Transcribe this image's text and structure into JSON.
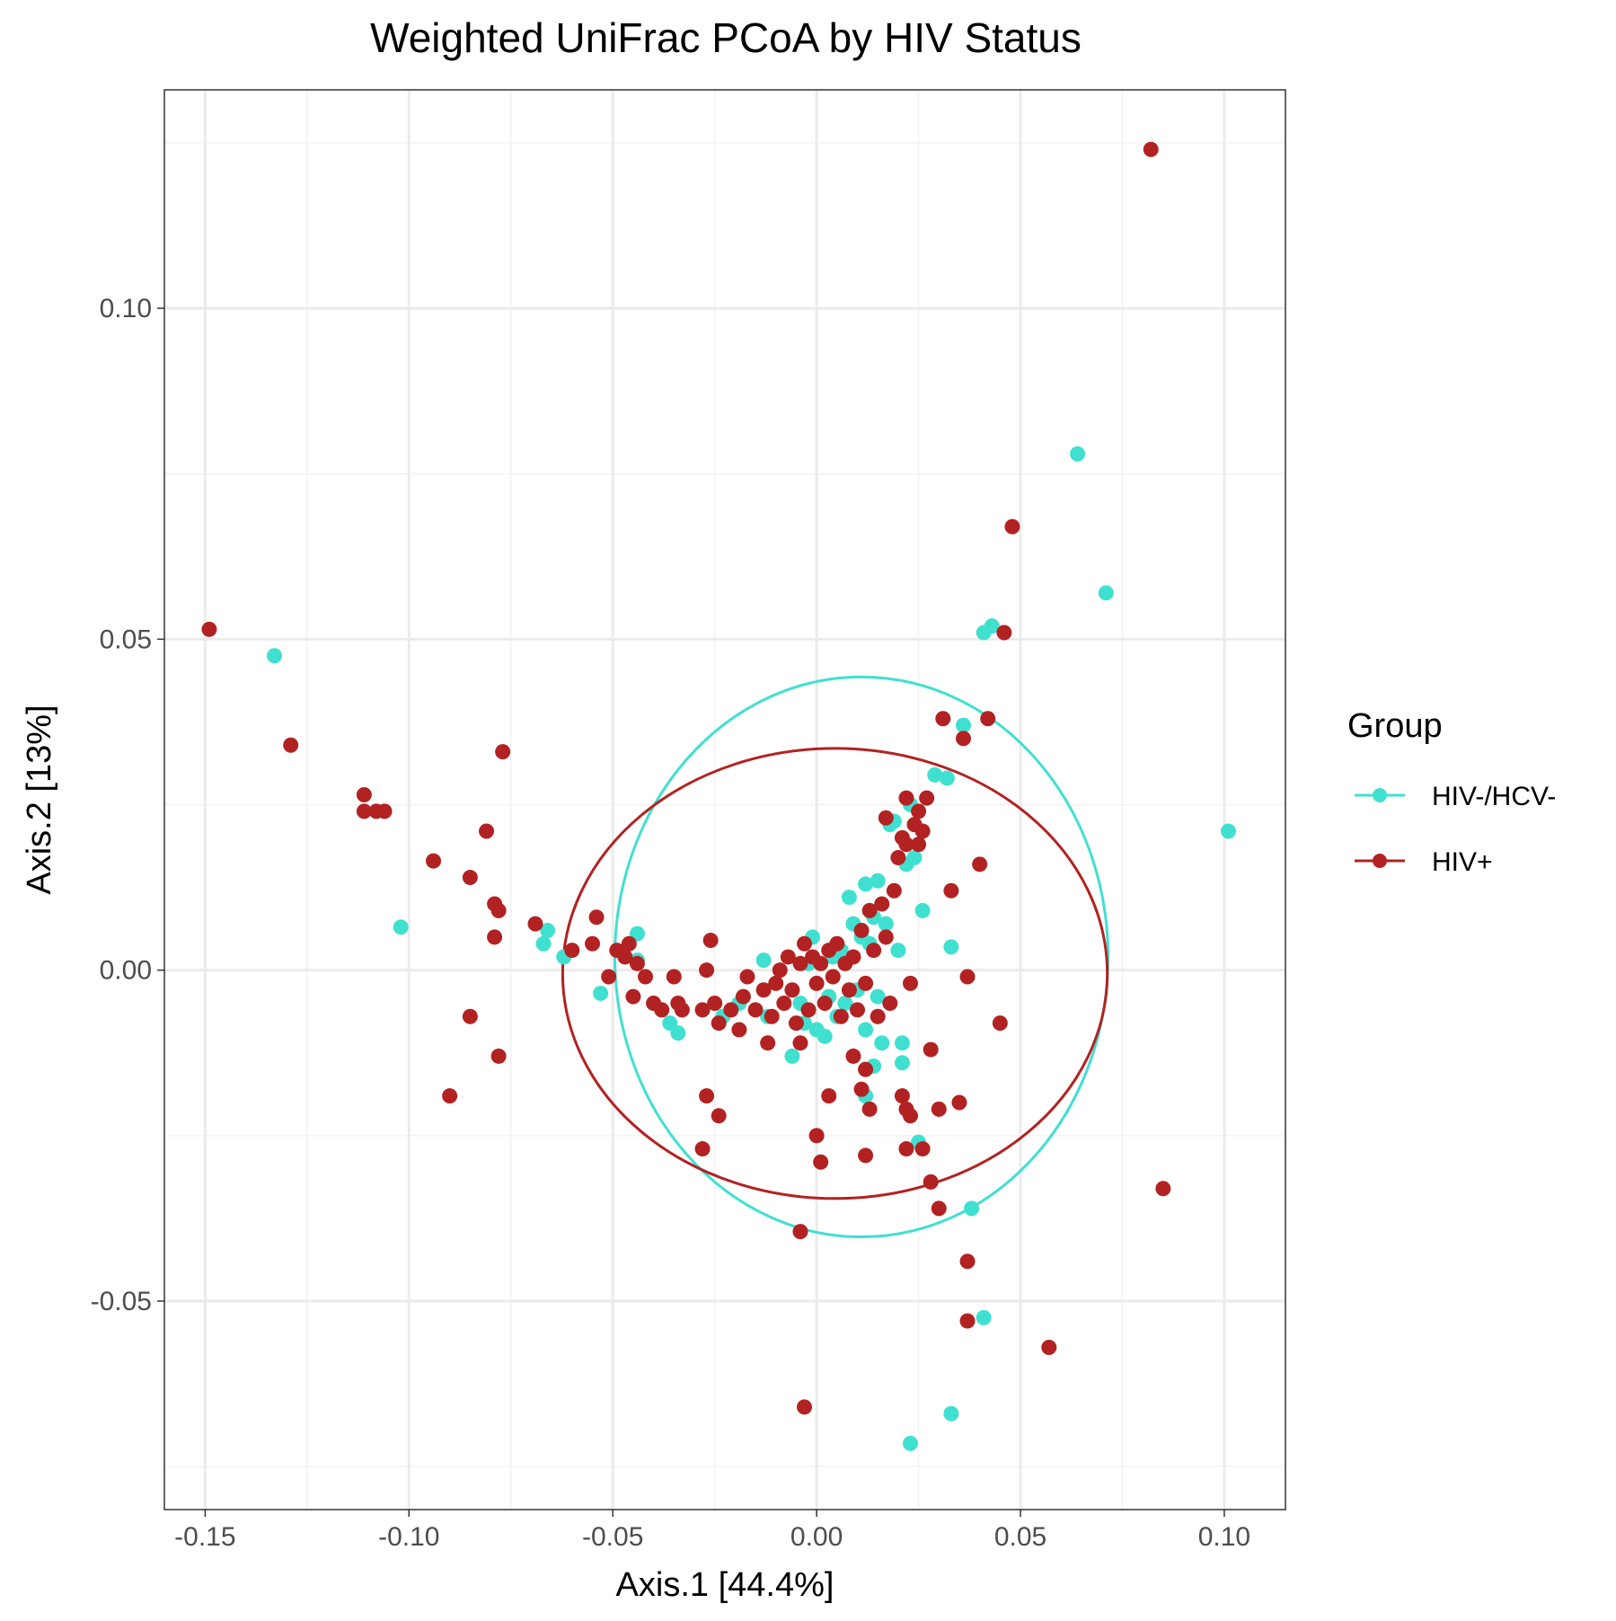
{
  "chart_data": {
    "type": "scatter",
    "title": "Weighted UniFrac PCoA by HIV Status",
    "xlabel": "Axis.1   [44.4%]",
    "ylabel": "Axis.2   [13%]",
    "xlim": [
      -0.16,
      0.115
    ],
    "ylim": [
      -0.0815,
      0.133
    ],
    "x_ticks": [
      -0.15,
      -0.1,
      -0.05,
      0.0,
      0.05,
      0.1
    ],
    "x_tick_labels": [
      "-0.15",
      "-0.10",
      "-0.05",
      "0.00",
      "0.05",
      "0.10"
    ],
    "y_ticks": [
      -0.05,
      0.0,
      0.05,
      0.1
    ],
    "y_tick_labels": [
      "-0.05",
      "0.00",
      "0.05",
      "0.10"
    ],
    "grid": true,
    "legend": {
      "title": "Group",
      "position": "right"
    },
    "series": [
      {
        "name": "HIV-/HCV-",
        "color": "#40E0D0",
        "ellipse": {
          "cx": 0.011,
          "cy": 0.002,
          "rx": 0.0605,
          "ry": 0.0423
        },
        "points": [
          [
            -0.133,
            0.0475
          ],
          [
            -0.102,
            0.0065
          ],
          [
            -0.066,
            0.006
          ],
          [
            -0.067,
            0.004
          ],
          [
            -0.062,
            0.002
          ],
          [
            -0.053,
            -0.0035
          ],
          [
            -0.044,
            0.0055
          ],
          [
            -0.044,
            0.0015
          ],
          [
            -0.036,
            -0.008
          ],
          [
            -0.034,
            -0.0095
          ],
          [
            -0.023,
            -0.007
          ],
          [
            -0.019,
            -0.005
          ],
          [
            -0.013,
            0.0015
          ],
          [
            -0.012,
            -0.007
          ],
          [
            -0.006,
            -0.013
          ],
          [
            -0.004,
            -0.005
          ],
          [
            -0.003,
            -0.008
          ],
          [
            -0.002,
            0.001
          ],
          [
            -0.001,
            0.005
          ],
          [
            0.0,
            -0.009
          ],
          [
            0.002,
            -0.01
          ],
          [
            0.003,
            -0.004
          ],
          [
            0.004,
            0.002
          ],
          [
            0.005,
            -0.007
          ],
          [
            0.006,
            0.003
          ],
          [
            0.007,
            -0.005
          ],
          [
            0.008,
            0.011
          ],
          [
            0.009,
            0.007
          ],
          [
            0.01,
            -0.003
          ],
          [
            0.011,
            0.005
          ],
          [
            0.012,
            0.013
          ],
          [
            0.012,
            -0.009
          ],
          [
            0.013,
            0.004
          ],
          [
            0.014,
            0.008
          ],
          [
            0.015,
            -0.004
          ],
          [
            0.015,
            0.0135
          ],
          [
            0.016,
            -0.011
          ],
          [
            0.017,
            0.007
          ],
          [
            0.018,
            0.022
          ],
          [
            0.019,
            0.0225
          ],
          [
            0.02,
            0.003
          ],
          [
            0.021,
            -0.011
          ],
          [
            0.022,
            0.016
          ],
          [
            0.023,
            0.025
          ],
          [
            0.024,
            0.017
          ],
          [
            0.026,
            0.009
          ],
          [
            0.029,
            0.0295
          ],
          [
            0.032,
            0.029
          ],
          [
            0.033,
            0.0035
          ],
          [
            0.036,
            0.037
          ],
          [
            0.041,
            0.051
          ],
          [
            0.043,
            0.052
          ],
          [
            0.064,
            0.078
          ],
          [
            0.071,
            0.057
          ],
          [
            0.101,
            0.021
          ],
          [
            0.012,
            -0.019
          ],
          [
            0.021,
            -0.014
          ],
          [
            0.014,
            -0.0145
          ],
          [
            0.025,
            -0.026
          ],
          [
            0.038,
            -0.036
          ],
          [
            0.041,
            -0.0525
          ],
          [
            0.033,
            -0.067
          ],
          [
            0.023,
            -0.0715
          ]
        ]
      },
      {
        "name": "HIV+",
        "color": "#B22222",
        "ellipse": {
          "cx": 0.0045,
          "cy": -0.0005,
          "rx": 0.0668,
          "ry": 0.034
        },
        "points": [
          [
            -0.149,
            0.0515
          ],
          [
            -0.129,
            0.034
          ],
          [
            -0.111,
            0.0265
          ],
          [
            -0.111,
            0.024
          ],
          [
            -0.108,
            0.024
          ],
          [
            -0.106,
            0.024
          ],
          [
            -0.094,
            0.0165
          ],
          [
            -0.085,
            0.014
          ],
          [
            -0.081,
            0.021
          ],
          [
            -0.079,
            0.01
          ],
          [
            -0.078,
            0.009
          ],
          [
            -0.079,
            0.005
          ],
          [
            -0.077,
            0.033
          ],
          [
            -0.069,
            0.007
          ],
          [
            -0.06,
            0.003
          ],
          [
            -0.055,
            0.004
          ],
          [
            -0.054,
            0.008
          ],
          [
            -0.051,
            -0.001
          ],
          [
            -0.049,
            0.003
          ],
          [
            -0.047,
            0.002
          ],
          [
            -0.046,
            0.004
          ],
          [
            -0.045,
            -0.004
          ],
          [
            -0.044,
            0.001
          ],
          [
            -0.042,
            -0.001
          ],
          [
            -0.04,
            -0.005
          ],
          [
            -0.038,
            -0.006
          ],
          [
            -0.035,
            -0.001
          ],
          [
            -0.034,
            -0.005
          ],
          [
            -0.033,
            -0.006
          ],
          [
            -0.028,
            -0.006
          ],
          [
            -0.027,
            0.0
          ],
          [
            -0.026,
            0.0045
          ],
          [
            -0.025,
            -0.005
          ],
          [
            -0.024,
            -0.008
          ],
          [
            -0.021,
            -0.006
          ],
          [
            -0.019,
            -0.009
          ],
          [
            -0.018,
            -0.004
          ],
          [
            -0.017,
            -0.001
          ],
          [
            -0.015,
            -0.006
          ],
          [
            -0.013,
            -0.003
          ],
          [
            -0.012,
            -0.011
          ],
          [
            -0.011,
            -0.007
          ],
          [
            -0.01,
            -0.002
          ],
          [
            -0.009,
            0.0
          ],
          [
            -0.008,
            -0.005
          ],
          [
            -0.007,
            0.002
          ],
          [
            -0.006,
            -0.003
          ],
          [
            -0.005,
            -0.008
          ],
          [
            -0.004,
            0.001
          ],
          [
            -0.003,
            0.004
          ],
          [
            -0.002,
            -0.006
          ],
          [
            -0.001,
            0.002
          ],
          [
            0.0,
            -0.002
          ],
          [
            0.001,
            0.001
          ],
          [
            0.002,
            -0.005
          ],
          [
            0.003,
            0.003
          ],
          [
            0.004,
            -0.001
          ],
          [
            0.005,
            0.004
          ],
          [
            0.006,
            -0.007
          ],
          [
            0.007,
            0.001
          ],
          [
            0.008,
            -0.003
          ],
          [
            0.009,
            0.002
          ],
          [
            0.01,
            -0.006
          ],
          [
            0.011,
            0.006
          ],
          [
            0.012,
            -0.002
          ],
          [
            0.013,
            0.009
          ],
          [
            0.014,
            0.003
          ],
          [
            0.015,
            -0.007
          ],
          [
            0.016,
            0.01
          ],
          [
            0.017,
            0.005
          ],
          [
            0.018,
            -0.005
          ],
          [
            0.019,
            0.012
          ],
          [
            0.02,
            0.017
          ],
          [
            0.021,
            0.02
          ],
          [
            0.022,
            0.019
          ],
          [
            0.023,
            -0.002
          ],
          [
            0.024,
            0.022
          ],
          [
            0.025,
            0.019
          ],
          [
            0.026,
            0.021
          ],
          [
            0.027,
            0.026
          ],
          [
            0.028,
            -0.012
          ],
          [
            0.031,
            0.038
          ],
          [
            0.033,
            0.012
          ],
          [
            0.036,
            0.035
          ],
          [
            0.037,
            -0.001
          ],
          [
            0.04,
            0.016
          ],
          [
            0.042,
            0.038
          ],
          [
            0.045,
            -0.008
          ],
          [
            0.046,
            0.051
          ],
          [
            0.048,
            0.067
          ],
          [
            0.082,
            0.124
          ],
          [
            -0.085,
            -0.007
          ],
          [
            -0.078,
            -0.013
          ],
          [
            -0.09,
            -0.019
          ],
          [
            -0.027,
            -0.019
          ],
          [
            -0.024,
            -0.022
          ],
          [
            -0.028,
            -0.027
          ],
          [
            -0.004,
            -0.011
          ],
          [
            0.0,
            -0.025
          ],
          [
            0.001,
            -0.029
          ],
          [
            0.003,
            -0.019
          ],
          [
            0.009,
            -0.013
          ],
          [
            0.012,
            -0.015
          ],
          [
            0.011,
            -0.018
          ],
          [
            0.013,
            -0.021
          ],
          [
            0.021,
            -0.019
          ],
          [
            0.022,
            -0.021
          ],
          [
            0.023,
            -0.022
          ],
          [
            0.012,
            -0.028
          ],
          [
            0.022,
            -0.027
          ],
          [
            0.026,
            -0.027
          ],
          [
            0.028,
            -0.032
          ],
          [
            0.03,
            -0.021
          ],
          [
            0.035,
            -0.02
          ],
          [
            0.03,
            -0.036
          ],
          [
            0.037,
            -0.044
          ],
          [
            0.037,
            -0.053
          ],
          [
            0.057,
            -0.057
          ],
          [
            0.085,
            -0.033
          ],
          [
            -0.004,
            -0.0395
          ],
          [
            -0.003,
            -0.066
          ],
          [
            0.022,
            0.026
          ],
          [
            0.025,
            0.024
          ],
          [
            0.017,
            0.023
          ]
        ]
      }
    ]
  }
}
